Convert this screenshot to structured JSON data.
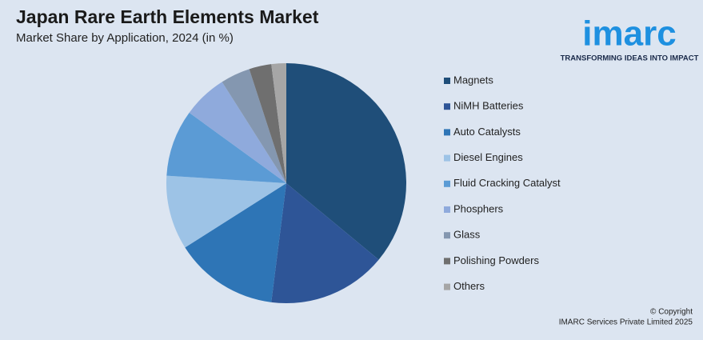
{
  "chart_data": {
    "type": "pie",
    "title": "Japan Rare Earth Elements Market",
    "subtitle": "Market Share by Application, 2024 (in %)",
    "categories": [
      "Magnets",
      "NiMH Batteries",
      "Auto Catalysts",
      "Diesel Engines",
      "Fluid Cracking Catalyst",
      "Phosphers",
      "Glass",
      "Polishing Powders",
      "Others"
    ],
    "values": [
      36,
      16,
      14,
      10,
      9,
      6,
      4,
      3,
      2
    ],
    "colors": [
      "#1f4e79",
      "#2e5597",
      "#2e75b6",
      "#9dc3e6",
      "#5b9bd5",
      "#8faadc",
      "#8497b0",
      "#6f6f6f",
      "#a6a6a6"
    ]
  },
  "logo": {
    "name": "imarc",
    "tagline": "TRANSFORMING IDEAS INTO IMPACT"
  },
  "footer": {
    "copyright": "© Copyright",
    "company": "IMARC Services Private Limited 2025"
  }
}
